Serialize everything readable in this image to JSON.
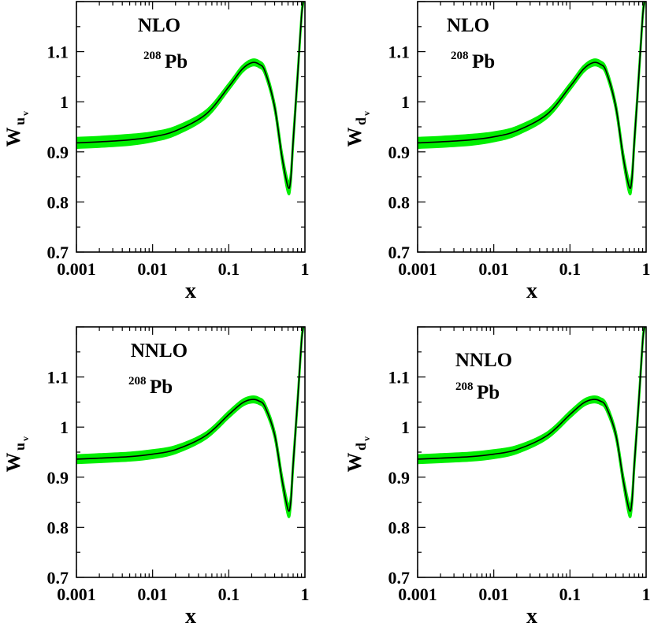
{
  "chart_data": [
    {
      "type": "line",
      "order": "NLO",
      "nucleus_mass": "208",
      "nucleus_symbol": "Pb",
      "ylabel_main": "W",
      "ylabel_sub": "u",
      "ylabel_subsub": "v",
      "xlabel": "x",
      "xscale": "log",
      "xlim": [
        0.001,
        1
      ],
      "ylim": [
        0.7,
        1.2
      ],
      "xticks": [
        {
          "v": 0.001,
          "label": "0.001"
        },
        {
          "v": 0.01,
          "label": "0.01"
        },
        {
          "v": 0.1,
          "label": "0.1"
        },
        {
          "v": 1,
          "label": "1"
        }
      ],
      "yticks": [
        {
          "v": 0.7,
          "label": "0.7"
        },
        {
          "v": 0.8,
          "label": "0.8"
        },
        {
          "v": 0.9,
          "label": "0.9"
        },
        {
          "v": 1.0,
          "label": "1"
        },
        {
          "v": 1.1,
          "label": "1.1"
        }
      ],
      "series": [
        {
          "name": "central",
          "color": "#000000",
          "x": [
            0.001,
            0.002,
            0.005,
            0.01,
            0.02,
            0.05,
            0.1,
            0.15,
            0.2,
            0.25,
            0.3,
            0.4,
            0.5,
            0.6,
            0.65,
            0.7,
            0.8,
            0.9,
            0.95
          ],
          "values": [
            0.918,
            0.92,
            0.924,
            0.93,
            0.942,
            0.975,
            1.03,
            1.065,
            1.078,
            1.075,
            1.06,
            0.99,
            0.89,
            0.83,
            0.845,
            0.92,
            1.05,
            1.17,
            1.2
          ]
        },
        {
          "name": "uncertainty",
          "color": "#00ee00",
          "halfwidth": [
            0.01,
            0.01,
            0.01,
            0.009,
            0.008,
            0.007,
            0.006,
            0.006,
            0.006,
            0.006,
            0.006,
            0.006,
            0.008,
            0.012,
            0.01,
            0.008,
            0.006,
            0.005,
            0.004
          ]
        }
      ]
    },
    {
      "type": "line",
      "order": "NLO",
      "nucleus_mass": "208",
      "nucleus_symbol": "Pb",
      "ylabel_main": "W",
      "ylabel_sub": "d",
      "ylabel_subsub": "v",
      "xlabel": "x",
      "xscale": "log",
      "xlim": [
        0.001,
        1
      ],
      "ylim": [
        0.7,
        1.2
      ],
      "xticks": [
        {
          "v": 0.001,
          "label": "0.001"
        },
        {
          "v": 0.01,
          "label": "0.01"
        },
        {
          "v": 0.1,
          "label": "0.1"
        },
        {
          "v": 1,
          "label": "1"
        }
      ],
      "yticks": [
        {
          "v": 0.7,
          "label": "0.7"
        },
        {
          "v": 0.8,
          "label": "0.8"
        },
        {
          "v": 0.9,
          "label": "0.9"
        },
        {
          "v": 1.0,
          "label": "1"
        },
        {
          "v": 1.1,
          "label": "1.1"
        }
      ],
      "series": [
        {
          "name": "central",
          "color": "#000000",
          "x": [
            0.001,
            0.002,
            0.005,
            0.01,
            0.02,
            0.05,
            0.1,
            0.15,
            0.2,
            0.25,
            0.3,
            0.4,
            0.5,
            0.6,
            0.65,
            0.7,
            0.8,
            0.9,
            0.95
          ],
          "values": [
            0.918,
            0.92,
            0.924,
            0.93,
            0.942,
            0.975,
            1.03,
            1.065,
            1.078,
            1.075,
            1.06,
            0.99,
            0.89,
            0.83,
            0.845,
            0.92,
            1.05,
            1.17,
            1.2
          ]
        },
        {
          "name": "uncertainty",
          "color": "#00ee00",
          "halfwidth": [
            0.01,
            0.01,
            0.01,
            0.009,
            0.008,
            0.007,
            0.006,
            0.006,
            0.006,
            0.006,
            0.006,
            0.006,
            0.008,
            0.012,
            0.01,
            0.008,
            0.006,
            0.005,
            0.004
          ]
        }
      ]
    },
    {
      "type": "line",
      "order": "NNLO",
      "nucleus_mass": "208",
      "nucleus_symbol": "Pb",
      "ylabel_main": "W",
      "ylabel_sub": "u",
      "ylabel_subsub": "v",
      "xlabel": "x",
      "xscale": "log",
      "xlim": [
        0.001,
        1
      ],
      "ylim": [
        0.7,
        1.2
      ],
      "xticks": [
        {
          "v": 0.001,
          "label": "0.001"
        },
        {
          "v": 0.01,
          "label": "0.01"
        },
        {
          "v": 0.1,
          "label": "0.1"
        },
        {
          "v": 1,
          "label": "1"
        }
      ],
      "yticks": [
        {
          "v": 0.7,
          "label": "0.7"
        },
        {
          "v": 0.8,
          "label": "0.8"
        },
        {
          "v": 0.9,
          "label": "0.9"
        },
        {
          "v": 1.0,
          "label": "1"
        },
        {
          "v": 1.1,
          "label": "1.1"
        }
      ],
      "series": [
        {
          "name": "central",
          "color": "#000000",
          "x": [
            0.001,
            0.002,
            0.005,
            0.01,
            0.02,
            0.05,
            0.1,
            0.15,
            0.2,
            0.25,
            0.3,
            0.4,
            0.5,
            0.6,
            0.65,
            0.7,
            0.8,
            0.9,
            0.95
          ],
          "values": [
            0.936,
            0.938,
            0.941,
            0.946,
            0.955,
            0.983,
            1.025,
            1.048,
            1.055,
            1.052,
            1.04,
            0.985,
            0.895,
            0.835,
            0.85,
            0.925,
            1.05,
            1.17,
            1.2
          ]
        },
        {
          "name": "uncertainty",
          "color": "#00ee00",
          "halfwidth": [
            0.008,
            0.008,
            0.008,
            0.008,
            0.007,
            0.006,
            0.006,
            0.006,
            0.006,
            0.006,
            0.006,
            0.006,
            0.008,
            0.012,
            0.01,
            0.008,
            0.006,
            0.005,
            0.004
          ]
        }
      ]
    },
    {
      "type": "line",
      "order": "NNLO",
      "nucleus_mass": "208",
      "nucleus_symbol": "Pb",
      "ylabel_main": "W",
      "ylabel_sub": "d",
      "ylabel_subsub": "v",
      "xlabel": "x",
      "xscale": "log",
      "xlim": [
        0.001,
        1
      ],
      "ylim": [
        0.7,
        1.2
      ],
      "xticks": [
        {
          "v": 0.001,
          "label": "0.001"
        },
        {
          "v": 0.01,
          "label": "0.01"
        },
        {
          "v": 0.1,
          "label": "0.1"
        },
        {
          "v": 1,
          "label": "1"
        }
      ],
      "yticks": [
        {
          "v": 0.7,
          "label": "0.7"
        },
        {
          "v": 0.8,
          "label": "0.8"
        },
        {
          "v": 0.9,
          "label": "0.9"
        },
        {
          "v": 1.0,
          "label": "1"
        },
        {
          "v": 1.1,
          "label": "1.1"
        }
      ],
      "series": [
        {
          "name": "central",
          "color": "#000000",
          "x": [
            0.001,
            0.002,
            0.005,
            0.01,
            0.02,
            0.05,
            0.1,
            0.15,
            0.2,
            0.25,
            0.3,
            0.4,
            0.5,
            0.6,
            0.65,
            0.7,
            0.8,
            0.9,
            0.95
          ],
          "values": [
            0.936,
            0.938,
            0.941,
            0.946,
            0.955,
            0.983,
            1.025,
            1.048,
            1.055,
            1.052,
            1.04,
            0.985,
            0.895,
            0.835,
            0.85,
            0.925,
            1.05,
            1.17,
            1.2
          ]
        },
        {
          "name": "uncertainty",
          "color": "#00ee00",
          "halfwidth": [
            0.008,
            0.008,
            0.008,
            0.008,
            0.007,
            0.006,
            0.006,
            0.006,
            0.006,
            0.006,
            0.006,
            0.006,
            0.008,
            0.012,
            0.01,
            0.008,
            0.006,
            0.005,
            0.004
          ]
        }
      ]
    }
  ]
}
